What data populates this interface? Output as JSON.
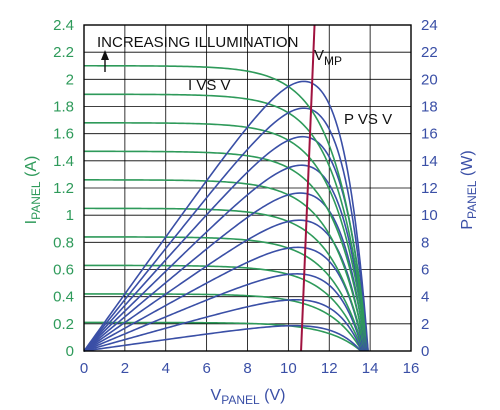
{
  "colors": {
    "current": "#2e9a5a",
    "power": "#3a4fa6",
    "vmp": "#a0123f",
    "left_axis_text": "#2e9a5a",
    "right_axis_text": "#3a4fa6",
    "grid": "#000000",
    "frame": "#000000"
  },
  "chart_data": {
    "type": "line",
    "xlabel": {
      "main": "V",
      "sub": "PANEL",
      "unit": " (V)"
    },
    "ylabel_left": {
      "main": "I",
      "sub": "PANEL",
      "unit": " (A)"
    },
    "ylabel_right": {
      "main": "P",
      "sub": "PANEL",
      "unit": " (W)"
    },
    "xlim": [
      0,
      16
    ],
    "ylim_left": [
      0,
      2.4
    ],
    "ylim_right": [
      0,
      24
    ],
    "x_ticks": [
      "0",
      "2",
      "4",
      "6",
      "8",
      "10",
      "12",
      "14",
      "16"
    ],
    "y_ticks_left": [
      "0",
      "0.2",
      "0.4",
      "0.6",
      "0.8",
      "1",
      "1.2",
      "1.4",
      "1.6",
      "1.8",
      "2",
      "2.2",
      "2.4"
    ],
    "y_ticks_right": [
      "0",
      "2",
      "4",
      "6",
      "8",
      "10",
      "12",
      "14",
      "16",
      "18",
      "20",
      "22",
      "24"
    ],
    "grid": true,
    "short_circuit_currents_A": [
      0.21,
      0.42,
      0.63,
      0.84,
      1.05,
      1.26,
      1.47,
      1.68,
      1.89,
      2.1
    ],
    "open_circuit_voltages_V": [
      13.55,
      13.6,
      13.65,
      13.7,
      13.75,
      13.78,
      13.82,
      13.85,
      13.88,
      13.9
    ],
    "max_power_voltages_V": [
      10.7,
      10.72,
      10.75,
      10.78,
      10.8,
      10.83,
      10.86,
      10.9,
      10.95,
      11.0
    ],
    "max_power_W": [
      1.85,
      3.75,
      5.65,
      7.6,
      9.6,
      11.6,
      13.65,
      15.75,
      17.85,
      19.8
    ],
    "annotations": {
      "increasing_illumination": "INCREASING ILLUMINATION",
      "i_vs_v": "I VS V",
      "p_vs_v": "P VS V",
      "vmp_main": "V",
      "vmp_sub": "MP"
    }
  }
}
